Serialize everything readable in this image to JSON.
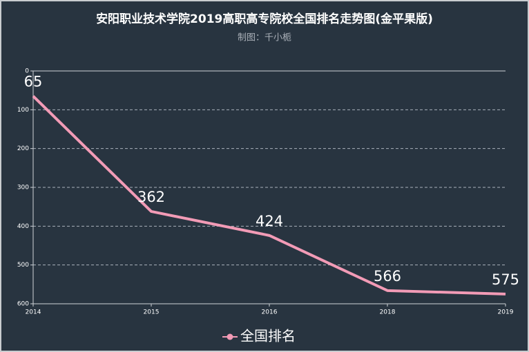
{
  "chart_data": {
    "type": "line",
    "title": "安阳职业技术学院2019高职高专院校全国排名走势图(金平果版)",
    "subtitle": "制图：千小栀",
    "categories": [
      "2014",
      "2015",
      "2016",
      "2018",
      "2019"
    ],
    "series": [
      {
        "name": "全国排名",
        "color": "#f29bb6",
        "values": [
          65,
          362,
          424,
          566,
          575
        ]
      }
    ],
    "ylim": [
      0,
      600
    ],
    "yticks": [
      0,
      100,
      200,
      300,
      400,
      500,
      600
    ],
    "y_inverse": true,
    "grid": true
  }
}
